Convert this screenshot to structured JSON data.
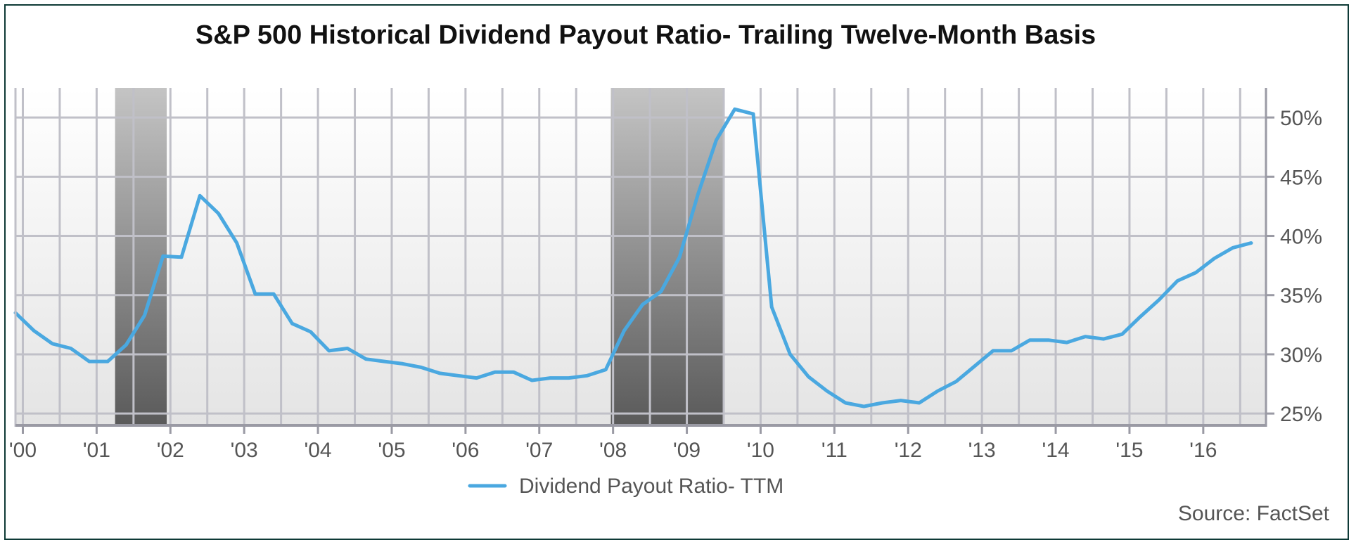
{
  "chart_data": {
    "type": "line",
    "title": "S&P 500 Historical Dividend Payout Ratio- Trailing Twelve-Month Basis",
    "source": "Source: FactSet",
    "xlabel": "",
    "ylabel": "",
    "x_tick_labels": [
      "'00",
      "'01",
      "'02",
      "'03",
      "'04",
      "'05",
      "'06",
      "'07",
      "'08",
      "'09",
      "'10",
      "'11",
      "'12",
      "'13",
      "'14",
      "'15",
      "'16"
    ],
    "y_tick_labels": [
      "25%",
      "30%",
      "35%",
      "40%",
      "45%",
      "50%"
    ],
    "y_ticks": [
      25,
      30,
      35,
      40,
      45,
      50
    ],
    "xlim": [
      1999.9,
      2016.85
    ],
    "ylim": [
      24,
      52.5
    ],
    "grid": true,
    "legend_position": "bottom-center",
    "recessions": [
      [
        2001.25,
        2001.95
      ],
      [
        2007.97,
        2009.5
      ]
    ],
    "colors": {
      "line": "#4aa8e0",
      "recession_top": "#c4c4c4",
      "recession_bottom": "#5a5a5a",
      "grid": "#c0c0c8",
      "frame": "#0e3a36"
    },
    "series": [
      {
        "name": "Dividend Payout Ratio- TTM",
        "x": [
          1999.9,
          2000.15,
          2000.4,
          2000.65,
          2000.9,
          2001.15,
          2001.4,
          2001.65,
          2001.9,
          2002.15,
          2002.4,
          2002.65,
          2002.9,
          2003.15,
          2003.4,
          2003.65,
          2003.9,
          2004.15,
          2004.4,
          2004.65,
          2004.9,
          2005.15,
          2005.4,
          2005.65,
          2005.9,
          2006.15,
          2006.4,
          2006.65,
          2006.9,
          2007.15,
          2007.4,
          2007.65,
          2007.9,
          2008.15,
          2008.4,
          2008.65,
          2008.9,
          2009.15,
          2009.4,
          2009.65,
          2009.9,
          2010.15,
          2010.4,
          2010.65,
          2010.9,
          2011.15,
          2011.4,
          2011.65,
          2011.9,
          2012.15,
          2012.4,
          2012.65,
          2012.9,
          2013.15,
          2013.4,
          2013.65,
          2013.9,
          2014.15,
          2014.4,
          2014.65,
          2014.9,
          2015.15,
          2015.4,
          2015.65,
          2015.9,
          2016.15,
          2016.4,
          2016.65
        ],
        "values": [
          33.5,
          32.0,
          30.9,
          30.5,
          29.4,
          29.4,
          30.8,
          33.3,
          38.3,
          38.2,
          43.4,
          41.9,
          39.4,
          35.1,
          35.1,
          32.6,
          31.9,
          30.3,
          30.5,
          29.6,
          29.4,
          29.2,
          28.9,
          28.4,
          28.2,
          28.0,
          28.5,
          28.5,
          27.8,
          28.0,
          28.0,
          28.2,
          28.7,
          32.0,
          34.2,
          35.3,
          38.2,
          43.5,
          48.1,
          50.7,
          50.3,
          34.0,
          30.0,
          28.1,
          26.9,
          25.9,
          25.6,
          25.9,
          26.1,
          25.9,
          26.9,
          27.7,
          29.0,
          30.3,
          30.3,
          31.2,
          31.2,
          31.0,
          31.5,
          31.3,
          31.7,
          33.2,
          34.6,
          36.2,
          36.9,
          38.1,
          39.0,
          39.4
        ]
      }
    ]
  }
}
